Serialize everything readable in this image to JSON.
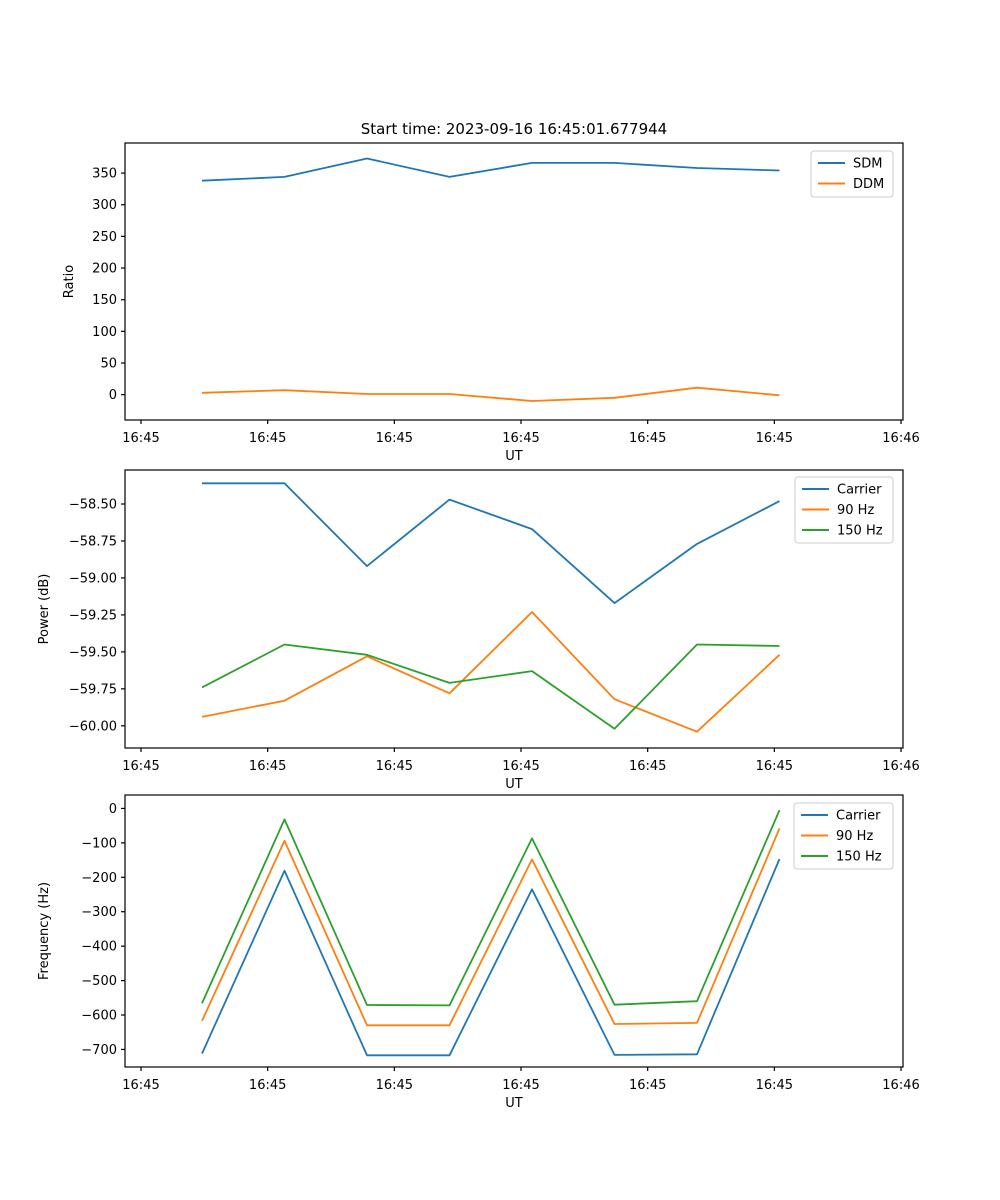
{
  "figure": {
    "title": "Start time: 2023-09-16 16:45:01.677944",
    "background": "#ffffff"
  },
  "colors": {
    "blue": "#1f77b4",
    "orange": "#ff7f0e",
    "green": "#2ca02c"
  },
  "chart_data": [
    {
      "type": "line",
      "title": "Start time: 2023-09-16 16:45:01.677944",
      "xlabel": "UT",
      "ylabel": "Ratio",
      "grid": false,
      "legend_position": "top-right",
      "x_tick_labels": [
        "16:45",
        "16:45",
        "16:45",
        "16:45",
        "16:45",
        "16:45",
        "16:46"
      ],
      "yticks": [
        350,
        300,
        250,
        200,
        150,
        100,
        50,
        0
      ],
      "ytick_decimals": 0,
      "ylim": [
        -40,
        397.5
      ],
      "x_index": [
        0,
        1,
        2,
        3,
        4,
        5,
        6,
        7
      ],
      "series": [
        {
          "name": "SDM",
          "color": "#1f77b4",
          "values": [
            338,
            344,
            373,
            344,
            366,
            366,
            358,
            354
          ]
        },
        {
          "name": "DDM",
          "color": "#ff7f0e",
          "values": [
            3,
            7,
            1,
            1,
            -10,
            -5,
            11,
            -1
          ]
        }
      ]
    },
    {
      "type": "line",
      "title": "",
      "xlabel": "UT",
      "ylabel": "Power (dB)",
      "grid": false,
      "legend_position": "top-right",
      "x_tick_labels": [
        "16:45",
        "16:45",
        "16:45",
        "16:45",
        "16:45",
        "16:45",
        "16:46"
      ],
      "yticks": [
        -58.5,
        -58.75,
        -59.0,
        -59.25,
        -59.5,
        -59.75,
        -60.0
      ],
      "ytick_decimals": 2,
      "ylim": [
        -60.15,
        -58.27
      ],
      "x_index": [
        0,
        1,
        2,
        3,
        4,
        5,
        6,
        7
      ],
      "series": [
        {
          "name": "Carrier",
          "color": "#1f77b4",
          "values": [
            -58.36,
            -58.36,
            -58.92,
            -58.47,
            -58.67,
            -59.17,
            -58.77,
            -58.48
          ]
        },
        {
          "name": "90 Hz",
          "color": "#ff7f0e",
          "values": [
            -59.94,
            -59.83,
            -59.53,
            -59.78,
            -59.23,
            -59.82,
            -60.04,
            -59.52
          ]
        },
        {
          "name": "150 Hz",
          "color": "#2ca02c",
          "values": [
            -59.74,
            -59.45,
            -59.52,
            -59.71,
            -59.63,
            -60.02,
            -59.45,
            -59.46
          ]
        }
      ]
    },
    {
      "type": "line",
      "title": "",
      "xlabel": "UT",
      "ylabel": "Frequency (Hz)",
      "grid": false,
      "legend_position": "top-right",
      "x_tick_labels": [
        "16:45",
        "16:45",
        "16:45",
        "16:45",
        "16:45",
        "16:45",
        "16:46"
      ],
      "yticks": [
        0,
        -100,
        -200,
        -300,
        -400,
        -500,
        -600,
        -700
      ],
      "ytick_decimals": 0,
      "ylim": [
        -751,
        39
      ],
      "x_index": [
        0,
        1,
        2,
        3,
        4,
        5,
        6,
        7
      ],
      "series": [
        {
          "name": "Carrier",
          "color": "#1f77b4",
          "values": [
            -712,
            -181,
            -717,
            -717,
            -235,
            -716,
            -714,
            -147
          ]
        },
        {
          "name": "90 Hz",
          "color": "#ff7f0e",
          "values": [
            -617,
            -94,
            -630,
            -630,
            -148,
            -626,
            -623,
            -58
          ]
        },
        {
          "name": "150 Hz",
          "color": "#2ca02c",
          "values": [
            -566,
            -32,
            -571,
            -572,
            -87,
            -570,
            -560,
            -5
          ]
        }
      ]
    }
  ]
}
